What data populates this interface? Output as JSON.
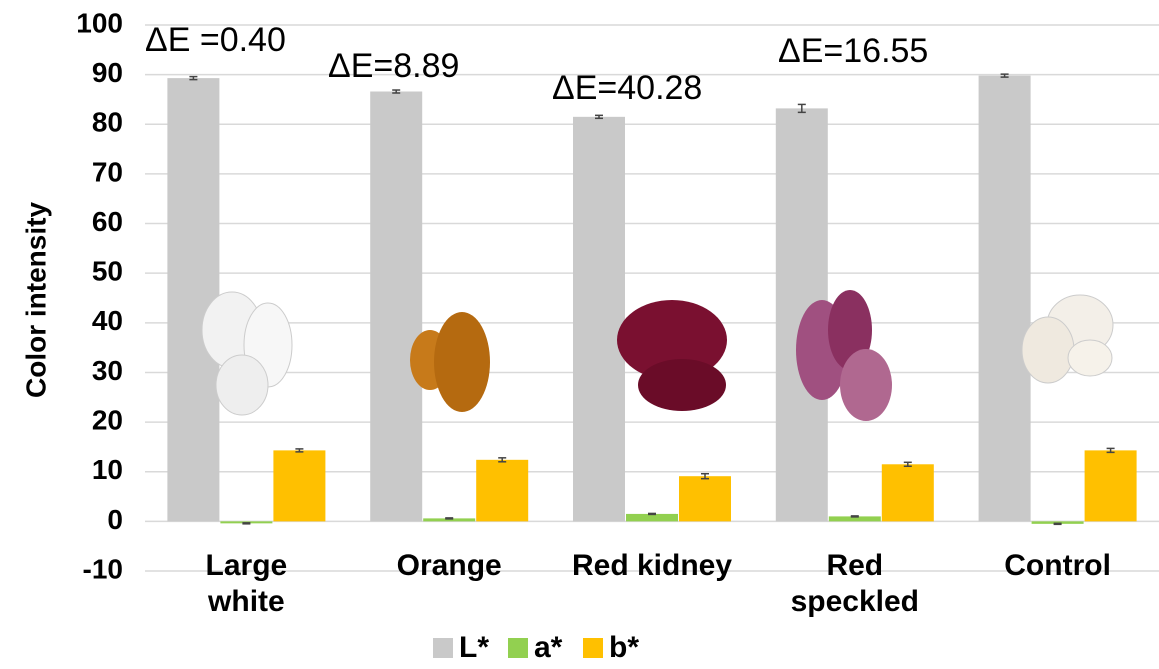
{
  "chart_data": {
    "type": "bar",
    "y_label": "Color intensity",
    "categories": [
      "Large\nwhite",
      "Orange",
      "Red kidney",
      "Red\nspeckled",
      "Control"
    ],
    "series": [
      {
        "name": "L*",
        "color": "#c9c9c9",
        "values": [
          89.3,
          86.6,
          81.5,
          83.2,
          89.8
        ],
        "errors": [
          0.3,
          0.3,
          0.3,
          0.8,
          0.3
        ]
      },
      {
        "name": "a*",
        "color": "#92d050",
        "values": [
          -0.4,
          0.6,
          1.5,
          1.0,
          -0.5
        ],
        "errors": [
          0.1,
          0.1,
          0.1,
          0.1,
          0.1
        ]
      },
      {
        "name": "b*",
        "color": "#ffc000",
        "values": [
          14.3,
          12.4,
          9.1,
          11.5,
          14.3
        ],
        "errors": [
          0.3,
          0.4,
          0.5,
          0.4,
          0.4
        ]
      }
    ],
    "annotations": [
      "ΔE =0.40",
      "ΔE=8.89",
      "ΔE=40.28",
      "ΔE=16.55"
    ],
    "ylim": [
      -10,
      100
    ],
    "yticks": [
      -10,
      0,
      10,
      20,
      30,
      40,
      50,
      60,
      70,
      80,
      90,
      100
    ],
    "grid": true,
    "legend": "bottom"
  }
}
